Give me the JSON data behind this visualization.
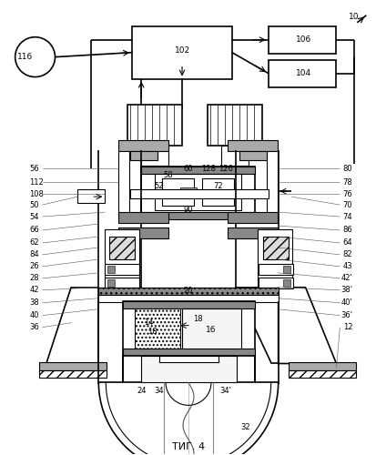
{
  "title": "ΤИГ. 4",
  "bg_color": "#ffffff",
  "line_color": "#000000",
  "figsize": [
    4.13,
    5.0
  ],
  "dpi": 100
}
